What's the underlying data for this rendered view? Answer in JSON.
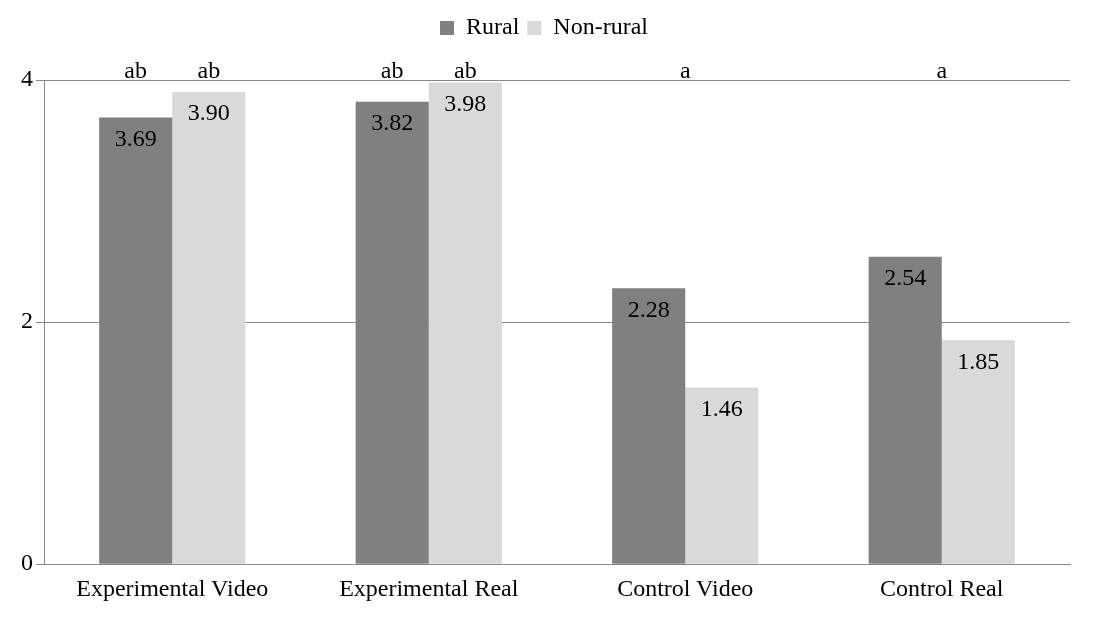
{
  "chart_data": {
    "type": "bar",
    "categories": [
      "Experimental Video",
      "Experimental Real",
      "Control Video",
      "Control Real"
    ],
    "series": [
      {
        "name": "Rural",
        "color": "#808080",
        "values": [
          3.69,
          3.82,
          2.28,
          2.54
        ],
        "value_labels": [
          "3.69",
          "3.82",
          "2.28",
          "2.54"
        ]
      },
      {
        "name": "Non-rural",
        "color": "#d9d9d9",
        "values": [
          3.9,
          3.98,
          1.46,
          1.85
        ],
        "value_labels": [
          "3.90",
          "3.98",
          "1.46",
          "1.85"
        ]
      }
    ],
    "ylim": [
      0,
      4
    ],
    "yticks": [
      0,
      2,
      4
    ],
    "grid": "y",
    "legend": "top",
    "annotations": [
      "ab",
      "ab",
      "ab",
      "ab",
      "a",
      "a"
    ]
  }
}
